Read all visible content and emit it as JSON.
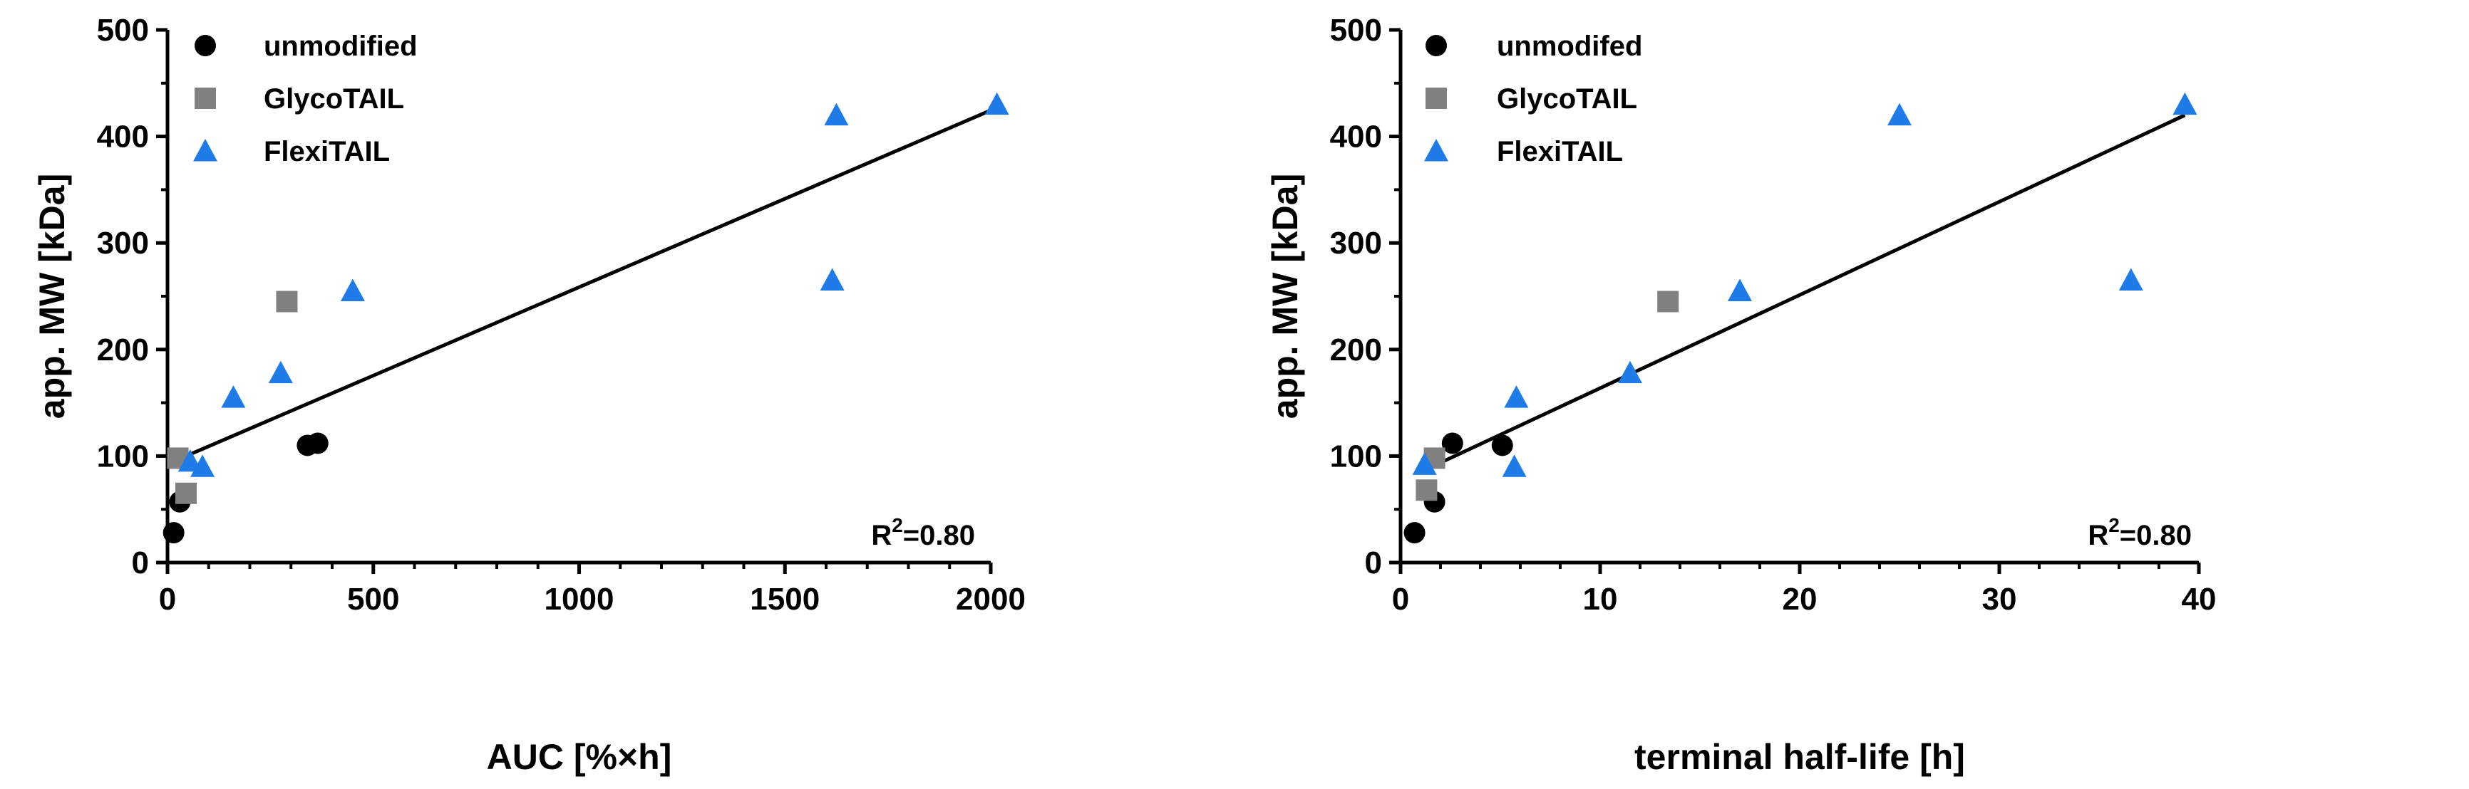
{
  "colors": {
    "unmodified": "#000000",
    "glycotail": "#808080",
    "flexitail": "#1f7be8",
    "fit": "#000000"
  },
  "chart_data": [
    {
      "type": "scatter",
      "xlabel": "AUC [%×h]",
      "ylabel": "app. MW [kDa]",
      "xlim": [
        0,
        2000
      ],
      "ylim": [
        0,
        500
      ],
      "xticks": [
        0,
        500,
        1000,
        1500,
        2000
      ],
      "xtick_labels": [
        "0",
        "500",
        "1000",
        "1500",
        "2000"
      ],
      "yticks": [
        0,
        100,
        200,
        300,
        400,
        500
      ],
      "ytick_labels": [
        "0",
        "100",
        "200",
        "300",
        "400",
        "500"
      ],
      "legend": [
        "unmodified",
        "GlycoTAIL",
        "FlexiTAIL"
      ],
      "legend_position": "top-left",
      "annotation": {
        "prefix": "R",
        "sup": "2",
        "suffix": "=0.80"
      },
      "series": [
        {
          "name": "unmodified",
          "marker": "circle",
          "x": [
            15,
            30,
            340,
            365
          ],
          "y": [
            28,
            57,
            110,
            112
          ]
        },
        {
          "name": "GlycoTAIL",
          "marker": "square",
          "x": [
            25,
            45,
            290
          ],
          "y": [
            98,
            65,
            245
          ]
        },
        {
          "name": "FlexiTAIL",
          "marker": "triangle",
          "x": [
            55,
            85,
            160,
            275,
            450,
            1615,
            1625,
            2015
          ],
          "y": [
            95,
            90,
            155,
            178,
            255,
            265,
            420,
            430
          ]
        }
      ],
      "fit": {
        "x": [
          15,
          2015
        ],
        "y": [
          95,
          427
        ]
      }
    },
    {
      "type": "scatter",
      "xlabel": "terminal half-life [h]",
      "ylabel": "app. MW [kDa]",
      "xlim": [
        0,
        40
      ],
      "ylim": [
        0,
        500
      ],
      "xticks": [
        0,
        10,
        20,
        30,
        40
      ],
      "xtick_labels": [
        "0",
        "10",
        "20",
        "30",
        "40"
      ],
      "yticks": [
        0,
        100,
        200,
        300,
        400,
        500
      ],
      "ytick_labels": [
        "0",
        "100",
        "200",
        "300",
        "400",
        "500"
      ],
      "legend": [
        "unmodifed",
        "GlycoTAIL",
        "FlexiTAIL"
      ],
      "legend_position": "top-left",
      "annotation": {
        "prefix": "R",
        "sup": "2",
        "suffix": "=0.80"
      },
      "series": [
        {
          "name": "unmodifed",
          "marker": "circle",
          "x": [
            0.7,
            1.7,
            2.6,
            5.1
          ],
          "y": [
            28,
            57,
            112,
            110
          ]
        },
        {
          "name": "GlycoTAIL",
          "marker": "square",
          "x": [
            1.3,
            1.7,
            13.4
          ],
          "y": [
            68,
            98,
            245
          ]
        },
        {
          "name": "FlexiTAIL",
          "marker": "triangle",
          "x": [
            1.2,
            5.7,
            5.8,
            11.5,
            17.0,
            25.0,
            36.6,
            39.3
          ],
          "y": [
            92,
            90,
            155,
            178,
            255,
            420,
            265,
            430
          ]
        }
      ],
      "fit": {
        "x": [
          1.0,
          39.3
        ],
        "y": [
          85,
          420
        ]
      }
    }
  ]
}
